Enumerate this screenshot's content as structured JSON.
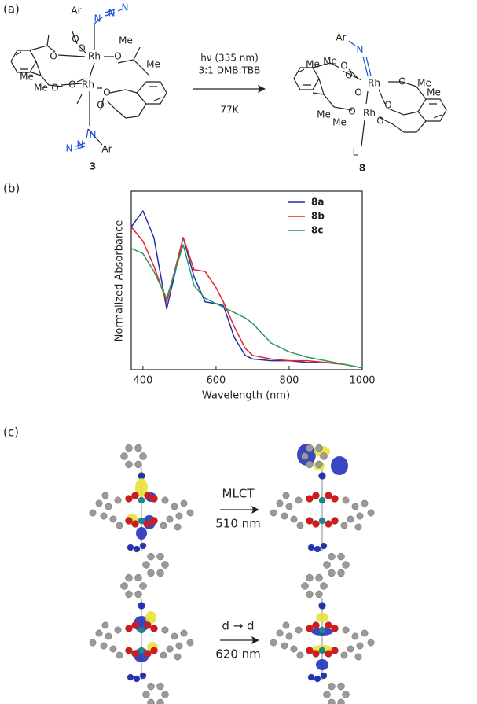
{
  "panel_labels": [
    "(a)",
    "(b)",
    "(c)"
  ],
  "scheme": {
    "compound_3": {
      "label": "3",
      "atoms": [
        "Ar",
        "N",
        "N",
        "N",
        "O",
        "O",
        "Rh",
        "O",
        "O",
        "O",
        "Rh",
        "O",
        "O",
        "O",
        "Me",
        "Me",
        "Me",
        "Me",
        "N",
        "N",
        "N",
        "Ar"
      ]
    },
    "conditions": [
      "hν (335 nm)",
      "3:1 DMB:TBB",
      "77K"
    ],
    "compound_8": {
      "label": "8",
      "atoms": [
        "Ar",
        "N",
        "O",
        "O",
        "Rh",
        "O",
        "O",
        "O",
        "Rh",
        "O",
        "O",
        "Me",
        "Me",
        "Me",
        "Me",
        "Me",
        "Me",
        "L"
      ]
    }
  },
  "chart_data": {
    "type": "line",
    "x_label": "Wavelength (nm)",
    "y_label": "Normalized Absorbance",
    "x": [
      368,
      400,
      430,
      465,
      510,
      540,
      570,
      600,
      620,
      650,
      680,
      700,
      750,
      800,
      850,
      900,
      950,
      1000
    ],
    "series": [
      {
        "name": "8a",
        "color": "#1f2fa8",
        "values": [
          0.8,
          0.89,
          0.74,
          0.34,
          0.74,
          0.52,
          0.38,
          0.37,
          0.36,
          0.18,
          0.08,
          0.06,
          0.05,
          0.05,
          0.04,
          0.04,
          0.03,
          0.01
        ]
      },
      {
        "name": "8b",
        "color": "#e0262a",
        "values": [
          0.8,
          0.72,
          0.58,
          0.38,
          0.74,
          0.56,
          0.55,
          0.46,
          0.38,
          0.24,
          0.12,
          0.08,
          0.06,
          0.05,
          0.05,
          0.04,
          0.03,
          0.01
        ]
      },
      {
        "name": "8c",
        "color": "#2a9a5a",
        "values": [
          0.68,
          0.65,
          0.55,
          0.4,
          0.7,
          0.47,
          0.4,
          0.37,
          0.35,
          0.32,
          0.29,
          0.26,
          0.15,
          0.1,
          0.07,
          0.05,
          0.03,
          0.01
        ]
      }
    ],
    "xlim": [
      368,
      1000
    ],
    "xticks": [
      400,
      600,
      800,
      1000
    ],
    "ylim": [
      0,
      1
    ],
    "legend": "upper right"
  },
  "transitions": [
    {
      "name": "MLCT",
      "wavelength": "510 nm"
    },
    {
      "name": "d → d",
      "wavelength": "620 nm"
    }
  ]
}
